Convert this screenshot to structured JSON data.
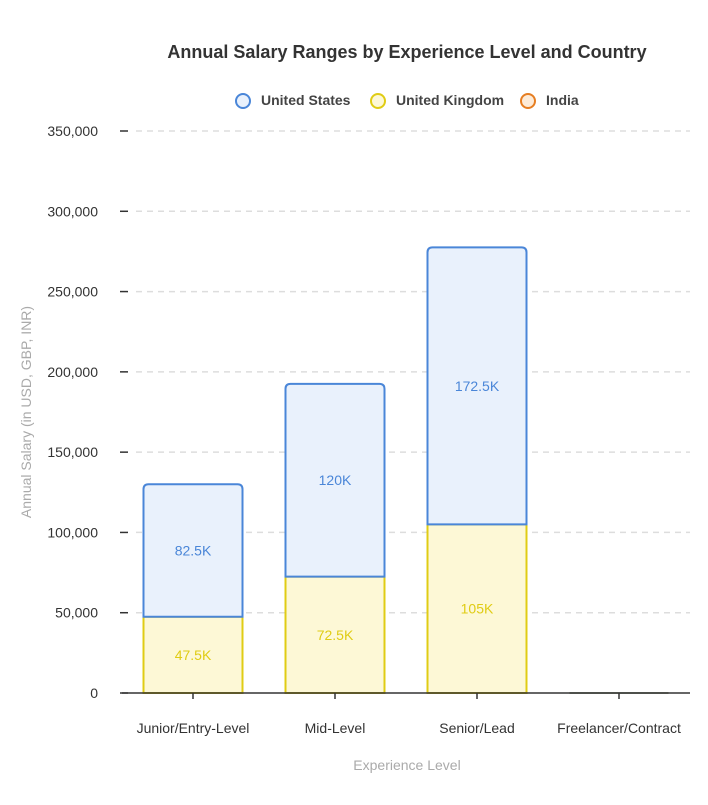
{
  "chart_data": {
    "type": "bar",
    "stacked": true,
    "title": "Annual Salary Ranges by Experience Level and Country",
    "xlabel": "Experience Level",
    "ylabel": "Annual Salary (in USD, GBP, INR)",
    "categories": [
      "Junior/Entry-Level",
      "Mid-Level",
      "Senior/Lead",
      "Freelancer/Contract"
    ],
    "ylim": [
      0,
      350000
    ],
    "yticks": [
      0,
      50000,
      100000,
      150000,
      200000,
      250000,
      300000,
      350000
    ],
    "ytick_labels": [
      "0",
      "50,000",
      "100,000",
      "150,000",
      "200,000",
      "250,000",
      "300,000",
      "350,000"
    ],
    "grid": true,
    "legend_position": "top",
    "series": [
      {
        "name": "India",
        "color": "#e67e22",
        "fill": "#fdebd8",
        "values": [
          0,
          0,
          0,
          0
        ],
        "labels": [
          "",
          "",
          "",
          ""
        ]
      },
      {
        "name": "United Kingdom",
        "color": "#e0cc14",
        "fill": "#fdf8d6",
        "values": [
          47500,
          72500,
          105000,
          0
        ],
        "labels": [
          "47.5K",
          "72.5K",
          "105K",
          ""
        ]
      },
      {
        "name": "United States",
        "color": "#4a86d8",
        "fill": "#e9f1fc",
        "values": [
          82500,
          120000,
          172500,
          0
        ],
        "labels": [
          "82.5K",
          "120K",
          "172.5K",
          ""
        ]
      }
    ],
    "legend_order": [
      "United States",
      "United Kingdom",
      "India"
    ]
  }
}
